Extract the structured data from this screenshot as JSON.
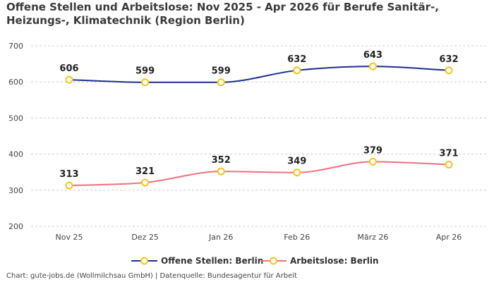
{
  "title": "Offene Stellen und Arbeitslose: Nov 2025 - Apr 2026 für Berufe Sanitär-, Heizungs-, Klimatechnik (Region Berlin)",
  "footer": "Chart: gute-jobs.de (Wollmilchsau GmbH) | Datenquelle: Bundesagentur für Arbeit",
  "colors": {
    "series_1": "#1f2f8f",
    "series_2": "#f07080",
    "marker_fill": "#ffffff",
    "marker_stroke": "#f5c518",
    "grid": "#cccccc"
  },
  "chart_data": {
    "type": "line",
    "title": "Offene Stellen und Arbeitslose: Nov 2025 - Apr 2026 für Berufe Sanitär-, Heizungs-, Klimatechnik (Region Berlin)",
    "xlabel": "",
    "ylabel": "",
    "categories": [
      "Nov 25",
      "Dez 25",
      "Jan 26",
      "Feb 26",
      "März 26",
      "Apr 26"
    ],
    "ylim": [
      200,
      700
    ],
    "yticks": [
      200,
      300,
      400,
      500,
      600,
      700
    ],
    "grid": true,
    "legend_position": "bottom",
    "series": [
      {
        "name": "Offene Stellen: Berlin",
        "values": [
          606,
          599,
          599,
          632,
          643,
          632
        ]
      },
      {
        "name": "Arbeitslose: Berlin",
        "values": [
          313,
          321,
          352,
          349,
          379,
          371
        ]
      }
    ]
  }
}
